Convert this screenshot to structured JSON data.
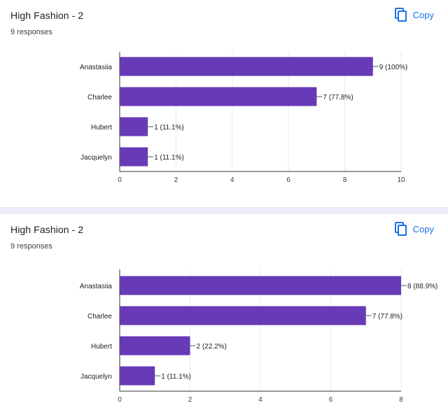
{
  "colors": {
    "bar": "#673ab7",
    "grid": "#eaeaea",
    "axis": "#333333",
    "accent": "#1a73e8"
  },
  "cards": [
    {
      "title": "High Fashion - 2",
      "subtitle": "9 responses",
      "copy_label": "Copy",
      "copy_icon": "copy-icon"
    },
    {
      "title": "High Fashion - 2",
      "subtitle": "9 responses",
      "copy_label": "Copy",
      "copy_icon": "copy-icon"
    }
  ],
  "chart_data": [
    {
      "type": "bar",
      "orientation": "horizontal",
      "categories": [
        "Anastasiia",
        "Charlee",
        "Hubert",
        "Jacquelyn"
      ],
      "values": [
        9,
        7,
        1,
        1
      ],
      "data_labels": [
        "9 (100%)",
        "7 (77.8%)",
        "1 (11.1%)",
        "1 (11.1%)"
      ],
      "xlim": [
        0,
        10
      ],
      "xticks": [
        0,
        2,
        4,
        6,
        8,
        10
      ],
      "grid": true,
      "title": "",
      "xlabel": "",
      "ylabel": ""
    },
    {
      "type": "bar",
      "orientation": "horizontal",
      "categories": [
        "Anastasiia",
        "Charlee",
        "Hubert",
        "Jacquelyn"
      ],
      "values": [
        8,
        7,
        2,
        1
      ],
      "data_labels": [
        "8 (88.9%)",
        "7 (77.8%)",
        "2 (22.2%)",
        "1 (11.1%)"
      ],
      "xlim": [
        0,
        8
      ],
      "xticks": [
        0,
        2,
        4,
        6,
        8
      ],
      "grid": true,
      "title": "",
      "xlabel": "",
      "ylabel": ""
    }
  ]
}
